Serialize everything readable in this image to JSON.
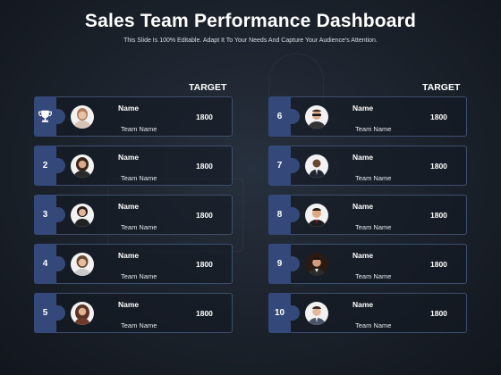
{
  "title": "Sales Team Performance Dashboard",
  "subtitle": "This Slide Is 100% Editable. Adapt It To Your Needs And Capture Your Audience's Attention.",
  "left_column": {
    "header": "TARGET",
    "rows": [
      {
        "rank_icon": "trophy-icon",
        "name": "Name",
        "team": "Team Name",
        "target": "1800"
      },
      {
        "rank": "2",
        "name": "Name",
        "team": "Team Name",
        "target": "1800"
      },
      {
        "rank": "3",
        "name": "Name",
        "team": "Team Name",
        "target": "1800"
      },
      {
        "rank": "4",
        "name": "Name",
        "team": "Team Name",
        "target": "1800"
      },
      {
        "rank": "5",
        "name": "Name",
        "team": "Team Name",
        "target": "1800"
      }
    ]
  },
  "right_column": {
    "header": "TARGET",
    "rows": [
      {
        "rank": "6",
        "name": "Name",
        "team": "Team Name",
        "target": "1800"
      },
      {
        "rank": "7",
        "name": "Name",
        "team": "Team Name",
        "target": "1800"
      },
      {
        "rank": "8",
        "name": "Name",
        "team": "Team Name",
        "target": "1800"
      },
      {
        "rank": "9",
        "name": "Name",
        "team": "Team Name",
        "target": "1800"
      },
      {
        "rank": "10",
        "name": "Name",
        "team": "Team Name",
        "target": "1800"
      }
    ]
  },
  "colors": {
    "accent": "#34497a",
    "card_border": "#3e4f6e",
    "background": "#1a2029"
  }
}
